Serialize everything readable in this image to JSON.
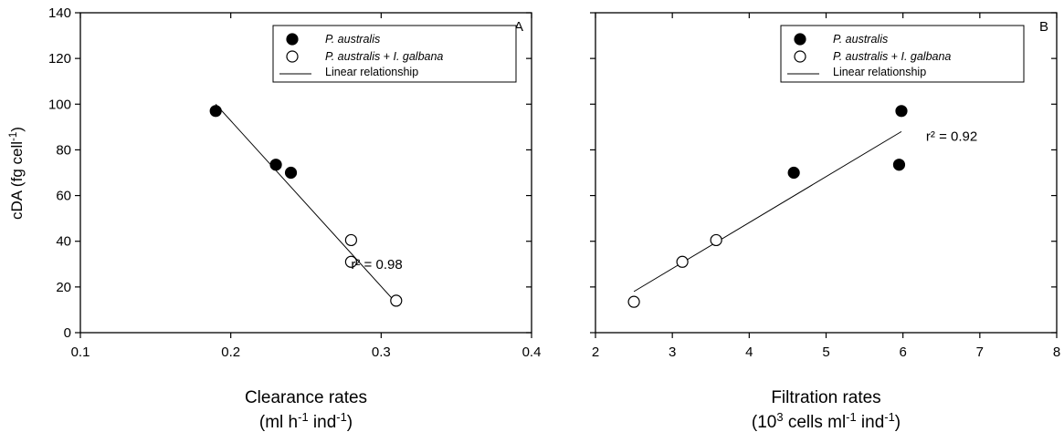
{
  "chart_data": [
    {
      "type": "scatter",
      "panel_label": "A",
      "xlabel": "Clearance rates",
      "xlabel_units_parts": [
        "(ml h",
        "-1",
        " ind",
        "-1",
        ")"
      ],
      "ylabel_parts": [
        "cDA (fg cell",
        "-1",
        ")"
      ],
      "xlim": [
        0.1,
        0.4
      ],
      "ylim": [
        0,
        140
      ],
      "xticks": [
        "0.1",
        "0.2",
        "0.3",
        "0.4"
      ],
      "yticks": [
        "0",
        "20",
        "40",
        "60",
        "80",
        "100",
        "120",
        "140"
      ],
      "xtick_values": [
        0.1,
        0.2,
        0.3,
        0.4
      ],
      "ytick_values": [
        0,
        20,
        40,
        60,
        80,
        100,
        120,
        140
      ],
      "series": [
        {
          "name": "P. australis",
          "marker": "filled",
          "points": [
            [
              0.19,
              97
            ],
            [
              0.23,
              73.5
            ],
            [
              0.24,
              70
            ]
          ]
        },
        {
          "name": "P. australis + I. galbana",
          "marker": "open",
          "points": [
            [
              0.28,
              40.5
            ],
            [
              0.28,
              31
            ],
            [
              0.31,
              14
            ]
          ]
        }
      ],
      "fit_line": {
        "name": "Linear relationship",
        "from": [
          0.19,
          100
        ],
        "to": [
          0.31,
          13
        ]
      },
      "annotation": "r² = 0.98",
      "annotation_at": [
        0.28,
        28
      ],
      "legend_placement": "top-right",
      "grid": false
    },
    {
      "type": "scatter",
      "panel_label": "B",
      "xlabel": "Filtration rates",
      "xlabel_units_parts": [
        "(10",
        "3",
        " cells ml",
        "-1",
        " ind",
        "-1",
        ")"
      ],
      "xlim": [
        2,
        8
      ],
      "ylim": [
        0,
        140
      ],
      "xticks": [
        "2",
        "3",
        "4",
        "5",
        "6",
        "7",
        "8"
      ],
      "yticks": [],
      "xtick_values": [
        2,
        3,
        4,
        5,
        6,
        7,
        8
      ],
      "ytick_values": [
        0,
        20,
        40,
        60,
        80,
        100,
        120,
        140
      ],
      "series": [
        {
          "name": "P. australis",
          "marker": "filled",
          "points": [
            [
              4.58,
              70
            ],
            [
              5.95,
              73.5
            ],
            [
              5.98,
              97
            ]
          ]
        },
        {
          "name": "P. australis + I. galbana",
          "marker": "open",
          "points": [
            [
              2.5,
              13.5
            ],
            [
              3.13,
              31
            ],
            [
              3.57,
              40.5
            ]
          ]
        }
      ],
      "fit_line": {
        "name": "Linear relationship",
        "from": [
          2.5,
          18
        ],
        "to": [
          5.98,
          88
        ]
      },
      "annotation": "r² = 0.92",
      "annotation_at": [
        6.3,
        84
      ],
      "legend_placement": "top-right",
      "grid": false
    }
  ]
}
